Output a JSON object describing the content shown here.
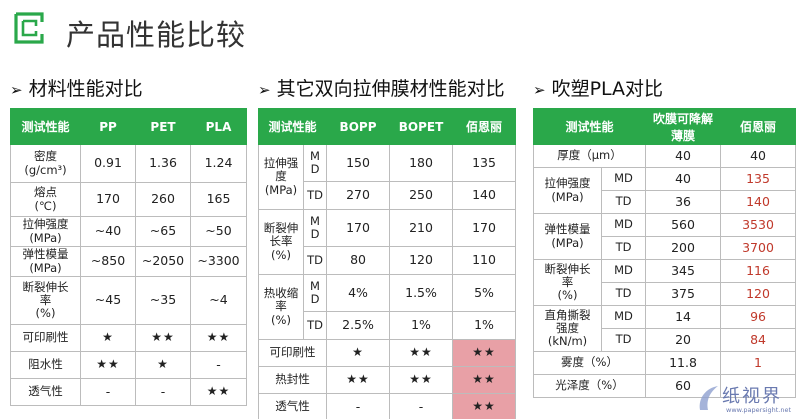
{
  "title": "产品性能比较",
  "colors": {
    "accent": "#2aa84a",
    "highlight": "#e8a0a6",
    "red_text": "#c0392b"
  },
  "icons": {
    "logo": "green-bracket-logo-icon",
    "arrow": "arrow-right-icon"
  },
  "sections": [
    {
      "title": "材料性能对比"
    },
    {
      "title": "其它双向拉伸膜材性能对比"
    },
    {
      "title": "吹塑PLA对比"
    }
  ],
  "table1": {
    "headers": [
      "测试性能",
      "PP",
      "PET",
      "PLA"
    ],
    "rows": [
      {
        "label": "密度\n(g/cm³)",
        "values": [
          "0.91",
          "1.36",
          "1.24"
        ]
      },
      {
        "label": "熔点\n(℃)",
        "values": [
          "170",
          "260",
          "165"
        ]
      },
      {
        "label": "拉伸强度\n(MPa)",
        "values": [
          "~40",
          "~65",
          "~50"
        ]
      },
      {
        "label": "弹性模量\n(MPa)",
        "values": [
          "~850",
          "~2050",
          "~3300"
        ]
      },
      {
        "label": "断裂伸长\n率\n(%)",
        "values": [
          "~45",
          "~35",
          "~4"
        ]
      },
      {
        "label": "可印刷性",
        "values": [
          "★",
          "★★",
          "★★"
        ]
      },
      {
        "label": "阻水性",
        "values": [
          "★★",
          "★",
          "-"
        ]
      },
      {
        "label": "透气性",
        "values": [
          "-",
          "-",
          "★★"
        ]
      }
    ]
  },
  "table2": {
    "headers": [
      "测试性能",
      "BOPP",
      "BOPET",
      "佰恩丽"
    ],
    "groups": [
      {
        "label": "拉伸强\n度\n(MPa)",
        "sub": [
          {
            "dir": "M\nD",
            "values": [
              "150",
              "180",
              "135"
            ]
          },
          {
            "dir": "TD",
            "values": [
              "270",
              "250",
              "140"
            ]
          }
        ]
      },
      {
        "label": "断裂伸\n长率\n(%)",
        "sub": [
          {
            "dir": "M\nD",
            "values": [
              "170",
              "210",
              "170"
            ]
          },
          {
            "dir": "TD",
            "values": [
              "80",
              "120",
              "110"
            ]
          }
        ]
      },
      {
        "label": "热收缩\n率\n(%)",
        "sub": [
          {
            "dir": "M\nD",
            "values": [
              "4%",
              "1.5%",
              "5%"
            ]
          },
          {
            "dir": "TD",
            "values": [
              "2.5%",
              "1%",
              "1%"
            ]
          }
        ]
      }
    ],
    "rows": [
      {
        "label": "可印刷性",
        "values": [
          "★",
          "★★",
          "★★"
        ]
      },
      {
        "label": "热封性",
        "values": [
          "★★",
          "★★",
          "★★"
        ]
      },
      {
        "label": "透气性",
        "values": [
          "-",
          "-",
          "★★"
        ]
      }
    ]
  },
  "table3": {
    "headers": [
      "测试性能",
      "吹膜可降解\n薄膜",
      "佰恩丽"
    ],
    "rows_top": [
      {
        "label": "厚度（μm）",
        "values": [
          "40",
          "40"
        ]
      }
    ],
    "groups": [
      {
        "label": "拉伸强度\n(MPa)",
        "sub": [
          {
            "dir": "MD",
            "values": [
              "40",
              "135"
            ]
          },
          {
            "dir": "TD",
            "values": [
              "36",
              "140"
            ]
          }
        ]
      },
      {
        "label": "弹性模量\n(MPa)",
        "sub": [
          {
            "dir": "MD",
            "values": [
              "560",
              "3530"
            ]
          },
          {
            "dir": "TD",
            "values": [
              "200",
              "3700"
            ]
          }
        ]
      },
      {
        "label": "断裂伸长\n率\n(%)",
        "sub": [
          {
            "dir": "MD",
            "values": [
              "345",
              "116"
            ]
          },
          {
            "dir": "TD",
            "values": [
              "375",
              "120"
            ]
          }
        ]
      },
      {
        "label": "直角撕裂\n强度\n(kN/m)",
        "sub": [
          {
            "dir": "MD",
            "values": [
              "14",
              "96"
            ]
          },
          {
            "dir": "TD",
            "values": [
              "20",
              "84"
            ]
          }
        ]
      }
    ],
    "rows_bottom": [
      {
        "label": "雾度（%）",
        "values": [
          "11.8",
          "1"
        ]
      },
      {
        "label": "光泽度（%）",
        "values": [
          "60",
          ""
        ]
      }
    ]
  },
  "watermark": {
    "text": "纸视界",
    "url": "www.papersight.net"
  }
}
